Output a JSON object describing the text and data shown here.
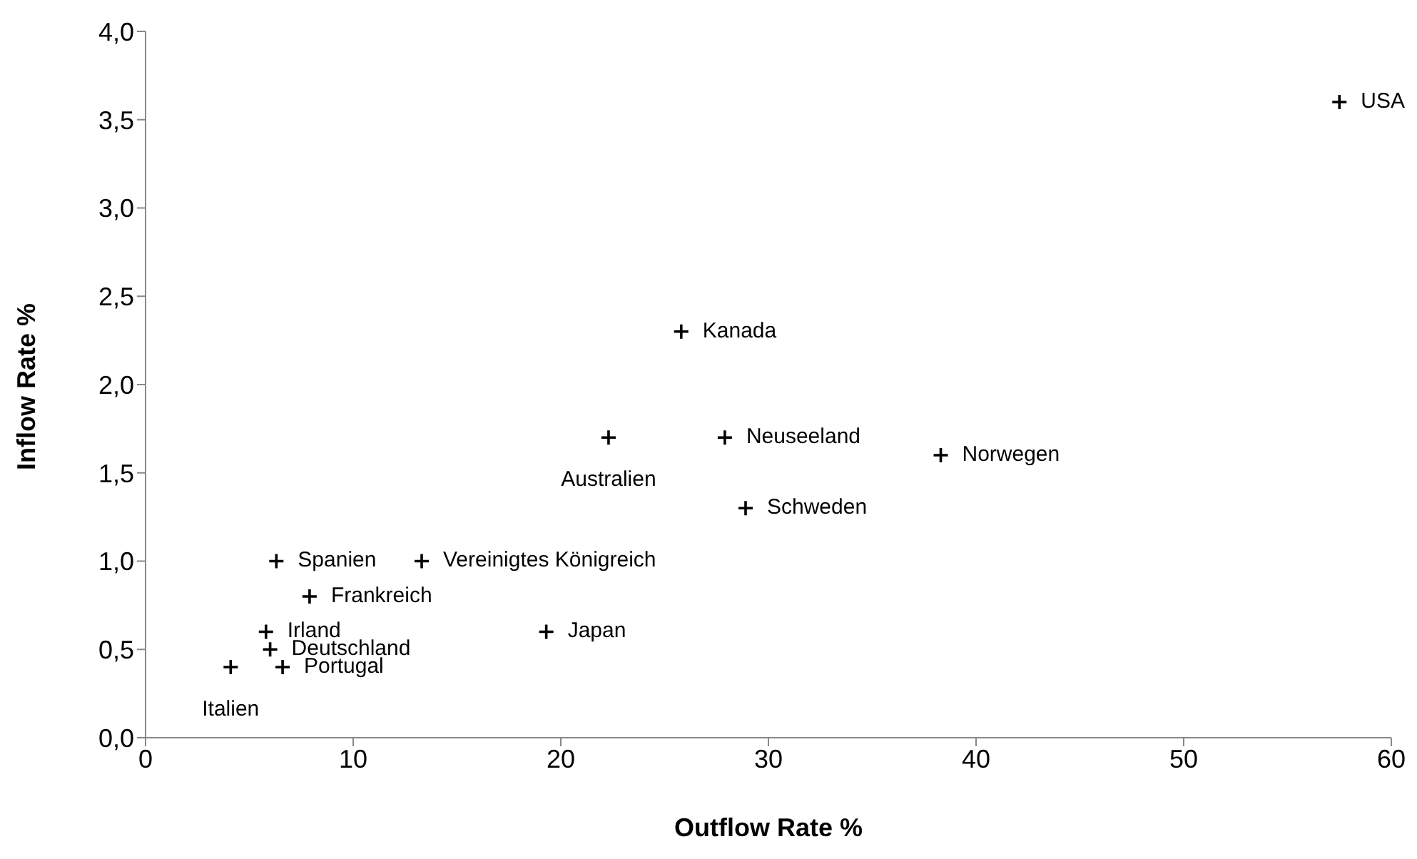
{
  "chart_data": {
    "type": "scatter",
    "xlabel": "Outflow Rate %",
    "ylabel": "Inflow Rate %",
    "x": [
      57.5,
      25.8,
      22.3,
      27.9,
      38.3,
      28.9,
      6.3,
      13.3,
      7.9,
      5.8,
      19.3,
      6.0,
      6.6,
      4.1
    ],
    "series": [
      {
        "color": "#000000",
        "values": [
          3.6,
          2.3,
          1.7,
          1.7,
          1.6,
          1.3,
          1.0,
          1.0,
          0.8,
          0.6,
          0.6,
          0.5,
          0.4,
          0.4
        ]
      }
    ],
    "marker": "cross",
    "grid": false,
    "legend": false,
    "xlim": [
      0,
      60
    ],
    "xticks": [
      0,
      10,
      20,
      30,
      40,
      50,
      60
    ],
    "ylim": [
      0,
      4
    ],
    "yticks": [
      {
        "value": 0,
        "label": "0,0"
      },
      {
        "value": 0.5,
        "label": "0,5"
      },
      {
        "value": 1,
        "label": "1,0"
      },
      {
        "value": 1.5,
        "label": "1,5"
      },
      {
        "value": 2,
        "label": "2,0"
      },
      {
        "value": 2.5,
        "label": "2,5"
      },
      {
        "value": 3,
        "label": "3,0"
      },
      {
        "value": 3.5,
        "label": "3,5"
      },
      {
        "value": 4,
        "label": "4,0"
      }
    ],
    "annotations": [
      {
        "text": "USA",
        "x": 57.5,
        "y": 3.6
      },
      {
        "text": "Kanada",
        "x": 25.8,
        "y": 2.3
      },
      {
        "text": "Australien",
        "x": 22.3,
        "y": 1.7
      },
      {
        "text": "Neuseeland",
        "x": 27.9,
        "y": 1.7
      },
      {
        "text": "Norwegen",
        "x": 38.3,
        "y": 1.6
      },
      {
        "text": "Schweden",
        "x": 28.9,
        "y": 1.3
      },
      {
        "text": "Spanien",
        "x": 6.3,
        "y": 1.0
      },
      {
        "text": "Vereinigtes Königreich",
        "x": 13.3,
        "y": 1.0
      },
      {
        "text": "Frankreich",
        "x": 7.9,
        "y": 0.8
      },
      {
        "text": "Irland",
        "x": 5.8,
        "y": 0.6
      },
      {
        "text": "Japan",
        "x": 19.3,
        "y": 0.6
      },
      {
        "text": "Deutschland",
        "x": 6.0,
        "y": 0.5
      },
      {
        "text": "Portugal",
        "x": 6.6,
        "y": 0.4
      },
      {
        "text": "Italien",
        "x": 4.1,
        "y": 0.4
      }
    ]
  }
}
